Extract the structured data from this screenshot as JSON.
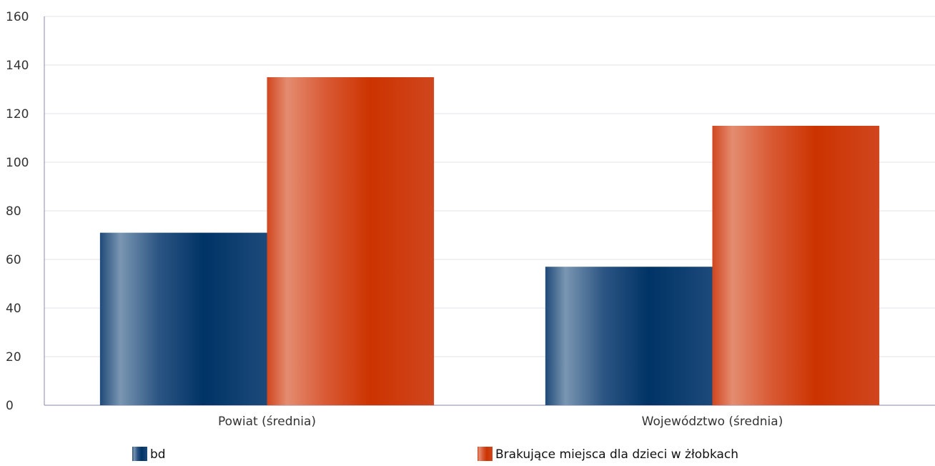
{
  "chart_data": {
    "type": "bar",
    "categories": [
      "Powiat (średnia)",
      "Województwo (średnia)"
    ],
    "series": [
      {
        "name": "bd",
        "values": [
          71,
          57
        ],
        "color": "#003366"
      },
      {
        "name": "Brakujące miejsca dla dzieci w żłobkach",
        "values": [
          135,
          115
        ],
        "color": "#cc3300"
      }
    ],
    "xlabel": "",
    "ylabel": "",
    "ylim": [
      0,
      160
    ],
    "yticks": [
      0,
      20,
      40,
      60,
      80,
      100,
      120,
      140,
      160
    ],
    "grid": true,
    "legend_position": "bottom"
  }
}
